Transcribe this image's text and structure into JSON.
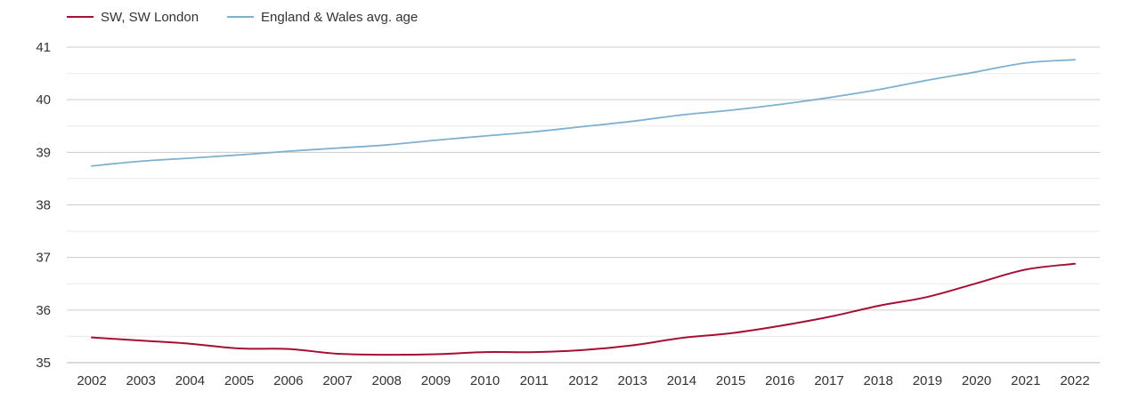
{
  "chart_data": {
    "type": "line",
    "x": [
      "2002",
      "2003",
      "2004",
      "2005",
      "2006",
      "2007",
      "2008",
      "2009",
      "2010",
      "2011",
      "2012",
      "2013",
      "2014",
      "2015",
      "2016",
      "2017",
      "2018",
      "2019",
      "2020",
      "2021",
      "2022"
    ],
    "series": [
      {
        "name": "SW, SW London",
        "color": "#a50f34",
        "values": [
          35.48,
          35.42,
          35.36,
          35.27,
          35.26,
          35.17,
          35.15,
          35.16,
          35.2,
          35.2,
          35.24,
          35.33,
          35.47,
          35.56,
          35.7,
          35.87,
          36.08,
          36.25,
          36.51,
          36.77,
          36.88
        ]
      },
      {
        "name": "England & Wales avg. age",
        "color": "#7fb0d0",
        "values": [
          38.74,
          38.83,
          38.89,
          38.95,
          39.02,
          39.08,
          39.14,
          39.23,
          39.31,
          39.39,
          39.49,
          39.59,
          39.71,
          39.8,
          39.91,
          40.04,
          40.19,
          40.37,
          40.53,
          40.7,
          40.76
        ]
      }
    ],
    "y_ticks": [
      "35",
      "36",
      "37",
      "38",
      "39",
      "40",
      "41"
    ],
    "ylim": [
      35,
      41
    ],
    "grid": true,
    "minor_grid": true,
    "legend_position": "top-left",
    "title": "",
    "xlabel": "",
    "ylabel": ""
  }
}
